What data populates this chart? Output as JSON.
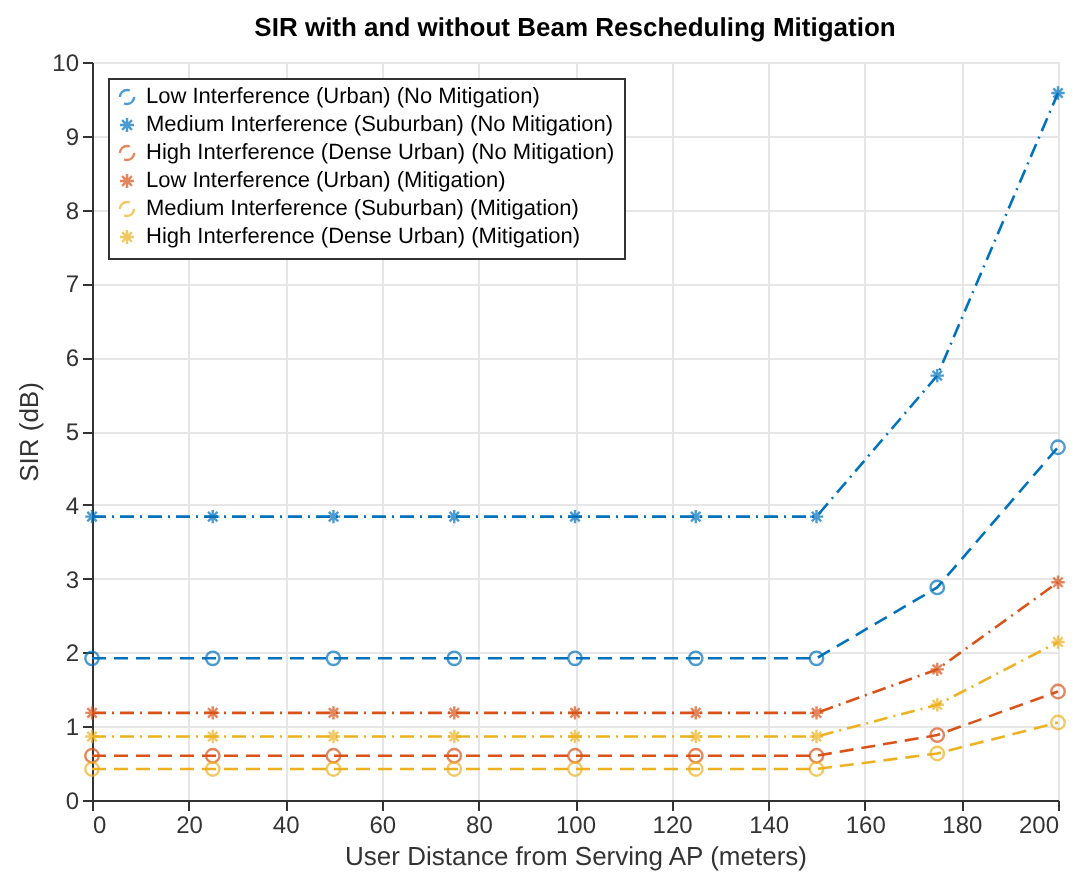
{
  "chart_data": {
    "type": "line",
    "title": "SIR with and without Beam Rescheduling Mitigation",
    "xlabel": "User Distance from Serving AP (meters)",
    "ylabel": "SIR (dB)",
    "x": [
      0,
      25,
      50,
      75,
      100,
      125,
      150,
      175,
      200
    ],
    "xlim": [
      0,
      200
    ],
    "xticks": [
      0,
      20,
      40,
      60,
      80,
      100,
      120,
      140,
      160,
      180,
      200
    ],
    "ylim": [
      0,
      10
    ],
    "yticks": [
      0,
      1,
      2,
      3,
      4,
      5,
      6,
      7,
      8,
      9,
      10
    ],
    "grid": true,
    "legend": "top left",
    "series": [
      {
        "name": "Low Interference (Urban) (No Mitigation)",
        "color": "#0072bd",
        "marker": "circle",
        "line_style": "dashed",
        "values": [
          1.92,
          1.92,
          1.92,
          1.92,
          1.92,
          1.92,
          1.92,
          2.88,
          4.78
        ]
      },
      {
        "name": "Medium Interference (Suburban) (No Mitigation)",
        "color": "#0072bd",
        "marker": "cross",
        "line_style": "dashdot",
        "values": [
          3.84,
          3.84,
          3.84,
          3.84,
          3.84,
          3.84,
          3.84,
          5.75,
          9.58
        ]
      },
      {
        "name": "High Interference (Dense Urban) (No Mitigation)",
        "color": "#d95319",
        "marker": "circle",
        "line_style": "dashed",
        "values": [
          0.6,
          0.6,
          0.6,
          0.6,
          0.6,
          0.6,
          0.6,
          0.88,
          1.47
        ]
      },
      {
        "name": "Low Interference (Urban) (Mitigation)",
        "color": "#d95319",
        "marker": "cross",
        "line_style": "dashdot",
        "values": [
          1.18,
          1.18,
          1.18,
          1.18,
          1.18,
          1.18,
          1.18,
          1.77,
          2.95
        ]
      },
      {
        "name": "Medium Interference (Suburban) (Mitigation)",
        "color": "#edb120",
        "marker": "circle",
        "line_style": "dashed",
        "values": [
          0.42,
          0.42,
          0.42,
          0.42,
          0.42,
          0.42,
          0.42,
          0.63,
          1.05
        ]
      },
      {
        "name": "High Interference (Dense Urban) (Mitigation)",
        "color": "#edb120",
        "marker": "cross",
        "line_style": "dashdot",
        "values": [
          0.86,
          0.86,
          0.86,
          0.86,
          0.86,
          0.86,
          0.86,
          1.29,
          2.14
        ]
      }
    ]
  }
}
